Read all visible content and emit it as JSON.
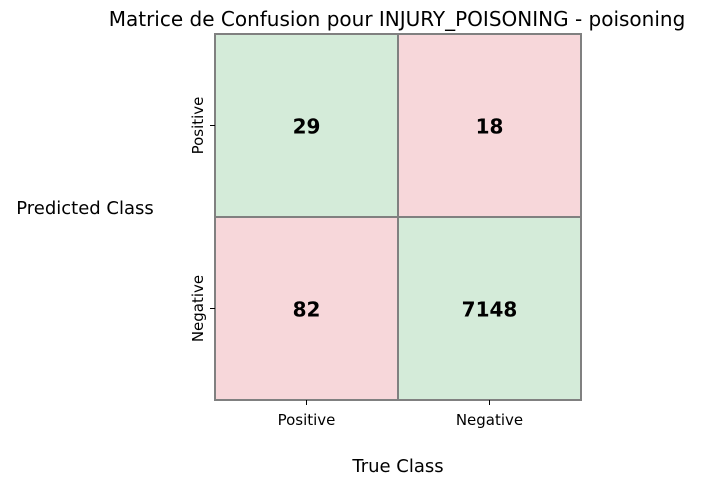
{
  "chart_data": {
    "type": "heatmap",
    "title": "Matrice de Confusion pour INJURY_POISONING - poisoning",
    "xlabel": "True Class",
    "ylabel": "Predicted Class",
    "x_categories": [
      "Positive",
      "Negative"
    ],
    "y_categories": [
      "Positive",
      "Negative"
    ],
    "values": [
      [
        29,
        18
      ],
      [
        82,
        7148
      ]
    ],
    "cell_colors": {
      "correct": "#d4ebd9",
      "incorrect": "#f7d7da"
    },
    "border_color": "#808080",
    "text_color": "#000000"
  }
}
